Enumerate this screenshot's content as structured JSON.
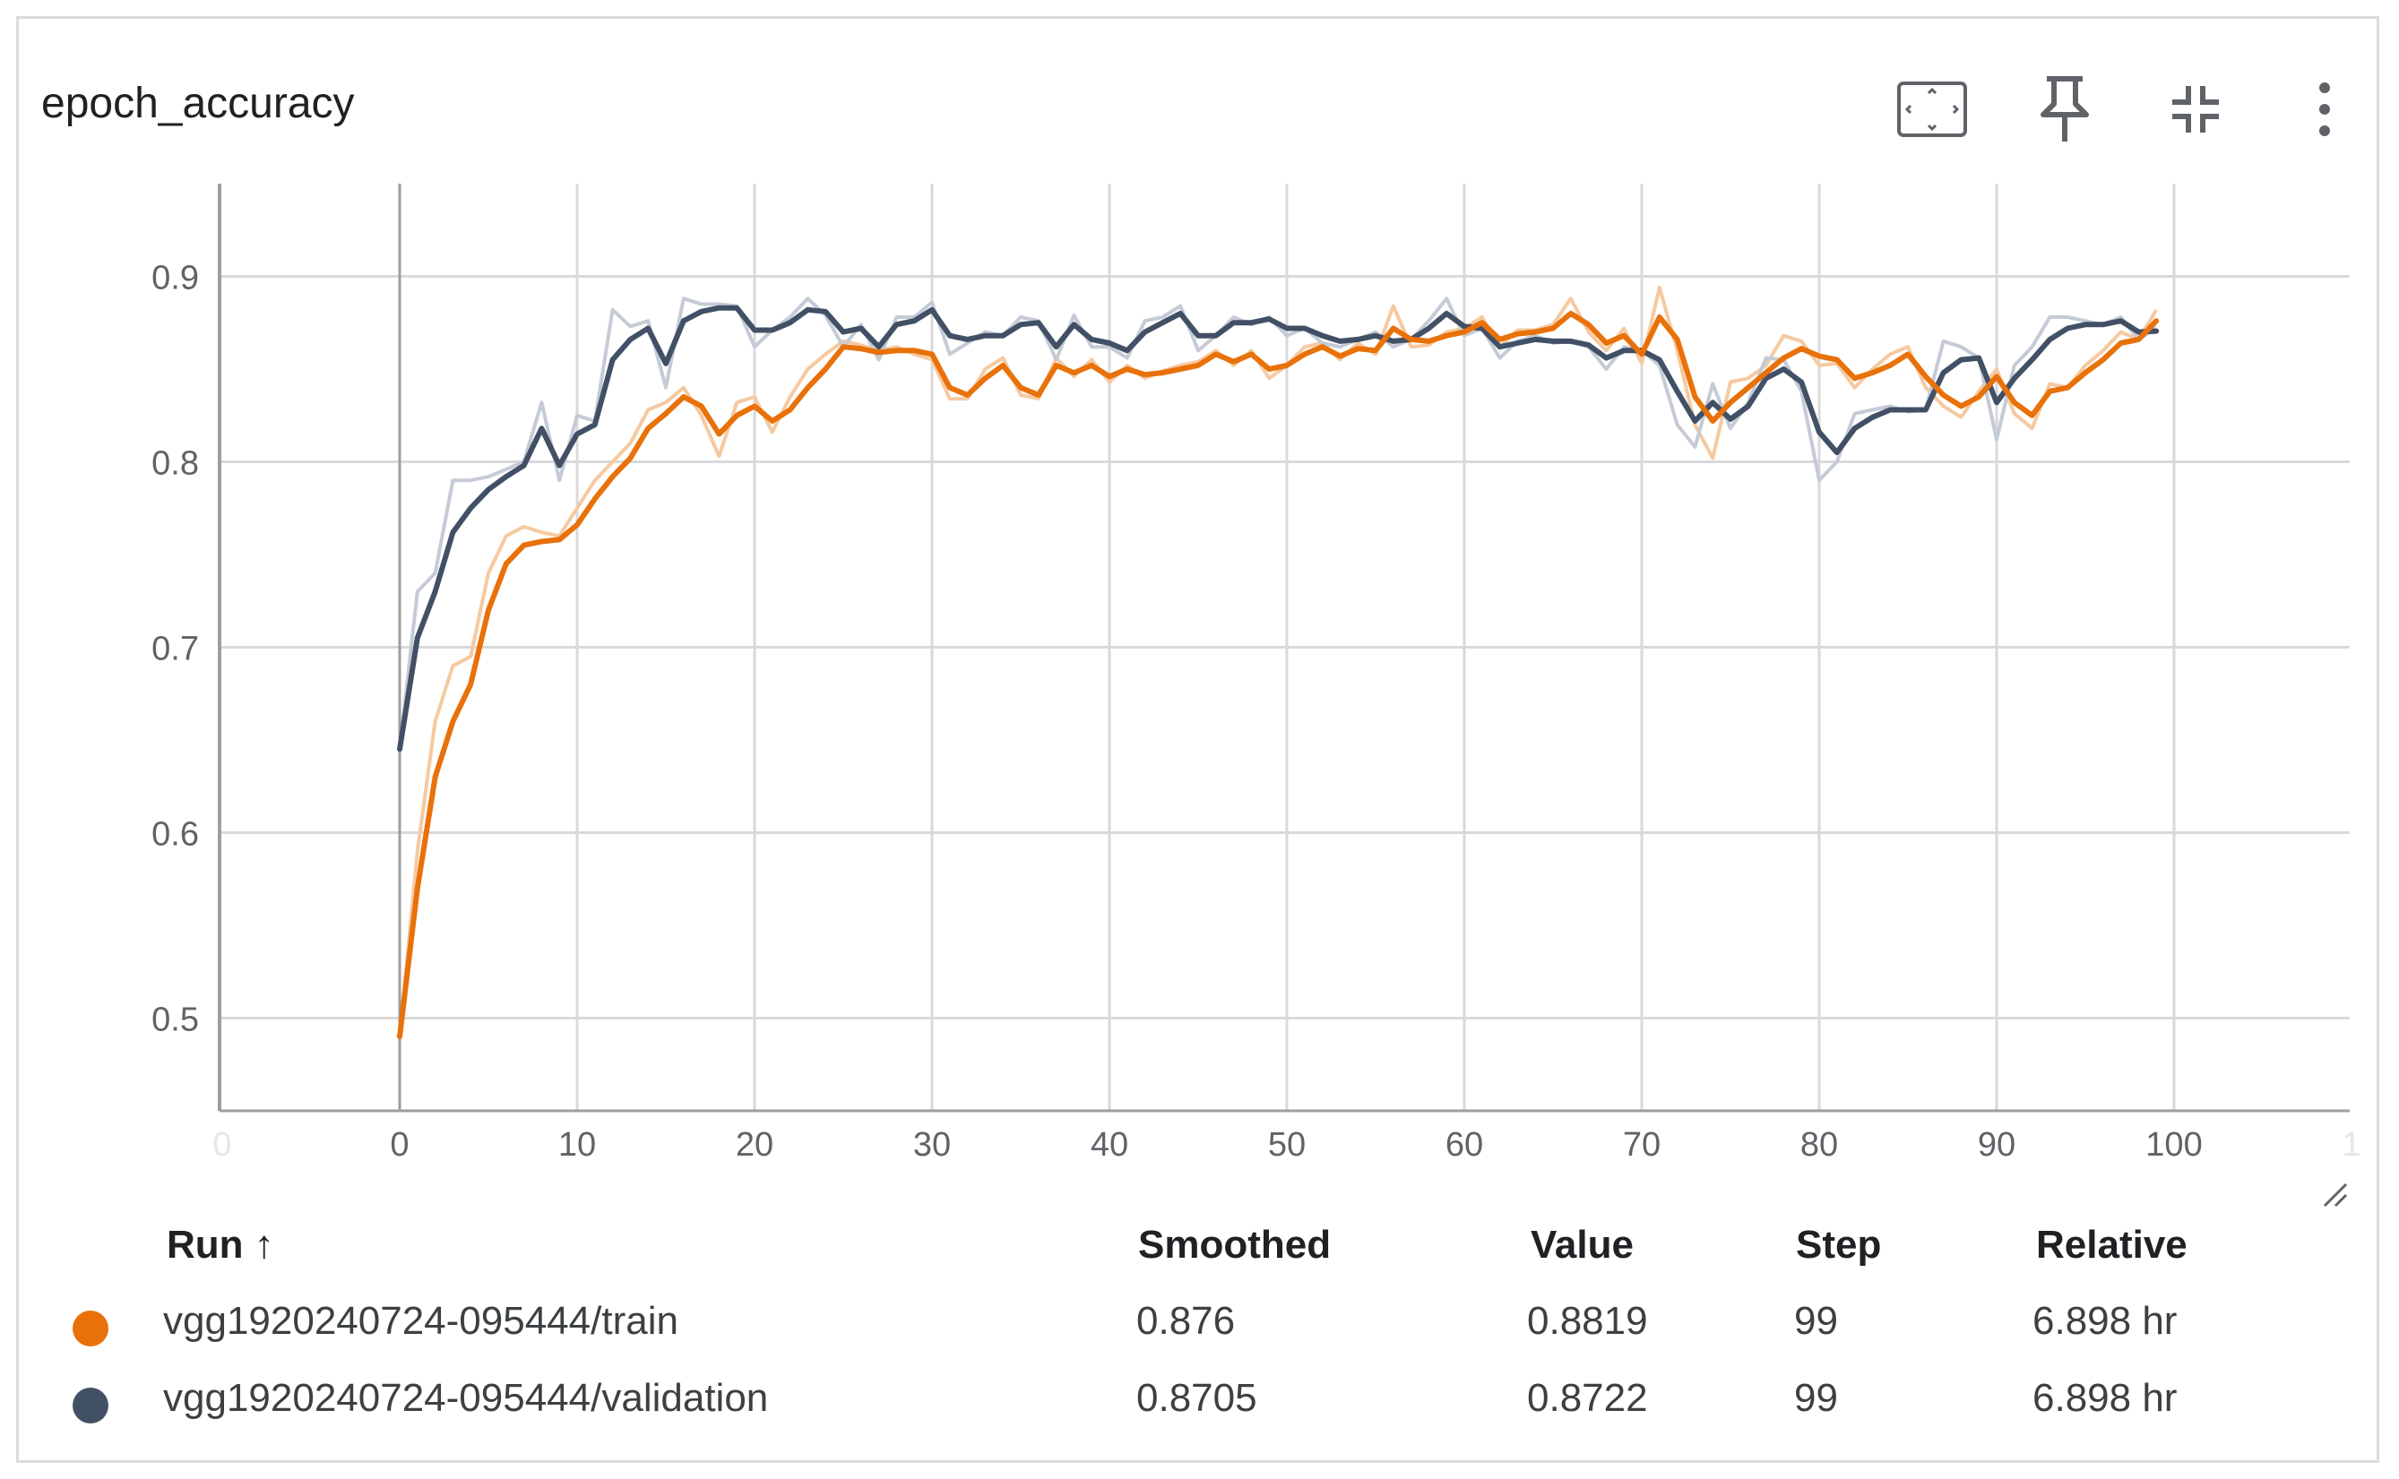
{
  "card": {
    "title": "epoch_accuracy",
    "icons": [
      "fit-domain-icon",
      "pin-icon",
      "collapse-icon",
      "more-vert-icon"
    ]
  },
  "table": {
    "headers": {
      "run": "Run ↑",
      "smoothed": "Smoothed",
      "value": "Value",
      "step": "Step",
      "relative": "Relative"
    },
    "rows": [
      {
        "run": "vgg1920240724-095444/train",
        "smoothed": "0.876",
        "value": "0.8819",
        "step": "99",
        "relative": "6.898 hr",
        "color": "#e8710a"
      },
      {
        "run": "vgg1920240724-095444/validation",
        "smoothed": "0.8705",
        "value": "0.8722",
        "step": "99",
        "relative": "6.898 hr",
        "color": "#425066"
      }
    ]
  },
  "chart_data": {
    "type": "line",
    "title": "epoch_accuracy",
    "xlabel": "",
    "ylabel": "",
    "xlim": [
      -10,
      110
    ],
    "ylim": [
      0.45,
      0.95
    ],
    "xticks": [
      "0",
      "0",
      "10",
      "20",
      "30",
      "40",
      "50",
      "60",
      "70",
      "80",
      "90",
      "100",
      "1"
    ],
    "yticks": [
      "0.5",
      "0.6",
      "0.7",
      "0.8",
      "0.9"
    ],
    "grid": true,
    "series": [
      {
        "name": "vgg1920240724-095444/train",
        "color": "#e8710a",
        "raw_color": "#f6c9a0",
        "x": [
          0,
          1,
          2,
          3,
          4,
          5,
          6,
          7,
          8,
          9,
          10,
          11,
          12,
          13,
          14,
          15,
          16,
          17,
          18,
          19,
          20,
          21,
          22,
          23,
          24,
          25,
          26,
          27,
          28,
          29,
          30,
          31,
          32,
          33,
          34,
          35,
          36,
          37,
          38,
          39,
          40,
          41,
          42,
          43,
          44,
          45,
          46,
          47,
          48,
          49,
          50,
          51,
          52,
          53,
          54,
          55,
          56,
          57,
          58,
          59,
          60,
          61,
          62,
          63,
          64,
          65,
          66,
          67,
          68,
          69,
          70,
          71,
          72,
          73,
          74,
          75,
          76,
          77,
          78,
          79,
          80,
          81,
          82,
          83,
          84,
          85,
          86,
          87,
          88,
          89,
          90,
          91,
          92,
          93,
          94,
          95,
          96,
          97,
          98,
          99
        ],
        "smoothed": [
          0.49,
          0.57,
          0.63,
          0.66,
          0.68,
          0.72,
          0.745,
          0.755,
          0.757,
          0.758,
          0.766,
          0.78,
          0.792,
          0.802,
          0.818,
          0.826,
          0.835,
          0.83,
          0.815,
          0.825,
          0.83,
          0.822,
          0.828,
          0.84,
          0.85,
          0.862,
          0.861,
          0.859,
          0.86,
          0.86,
          0.858,
          0.84,
          0.836,
          0.845,
          0.852,
          0.84,
          0.836,
          0.852,
          0.848,
          0.852,
          0.846,
          0.85,
          0.847,
          0.848,
          0.85,
          0.852,
          0.858,
          0.854,
          0.858,
          0.85,
          0.852,
          0.858,
          0.862,
          0.857,
          0.861,
          0.86,
          0.872,
          0.866,
          0.865,
          0.868,
          0.87,
          0.875,
          0.866,
          0.869,
          0.87,
          0.872,
          0.88,
          0.874,
          0.864,
          0.868,
          0.858,
          0.878,
          0.866,
          0.835,
          0.822,
          0.832,
          0.84,
          0.848,
          0.856,
          0.861,
          0.857,
          0.855,
          0.845,
          0.848,
          0.852,
          0.858,
          0.846,
          0.836,
          0.83,
          0.835,
          0.846,
          0.832,
          0.825,
          0.838,
          0.84,
          0.848,
          0.855,
          0.864,
          0.866,
          0.876
        ],
        "raw": [
          0.49,
          0.59,
          0.66,
          0.69,
          0.695,
          0.74,
          0.76,
          0.765,
          0.762,
          0.76,
          0.775,
          0.79,
          0.8,
          0.81,
          0.828,
          0.832,
          0.84,
          0.825,
          0.803,
          0.832,
          0.835,
          0.816,
          0.835,
          0.85,
          0.858,
          0.865,
          0.863,
          0.86,
          0.862,
          0.858,
          0.855,
          0.834,
          0.834,
          0.85,
          0.856,
          0.836,
          0.834,
          0.856,
          0.846,
          0.855,
          0.843,
          0.852,
          0.845,
          0.849,
          0.852,
          0.854,
          0.86,
          0.852,
          0.86,
          0.845,
          0.852,
          0.862,
          0.864,
          0.855,
          0.864,
          0.858,
          0.884,
          0.862,
          0.863,
          0.87,
          0.872,
          0.878,
          0.862,
          0.871,
          0.871,
          0.874,
          0.888,
          0.87,
          0.86,
          0.872,
          0.853,
          0.894,
          0.86,
          0.82,
          0.802,
          0.843,
          0.845,
          0.852,
          0.868,
          0.865,
          0.852,
          0.853,
          0.84,
          0.85,
          0.858,
          0.862,
          0.84,
          0.83,
          0.824,
          0.838,
          0.85,
          0.826,
          0.818,
          0.842,
          0.84,
          0.852,
          0.86,
          0.87,
          0.866,
          0.8819
        ]
      },
      {
        "name": "vgg1920240724-095444/validation",
        "color": "#425066",
        "raw_color": "#c5cbd6",
        "x": [
          0,
          1,
          2,
          3,
          4,
          5,
          6,
          7,
          8,
          9,
          10,
          11,
          12,
          13,
          14,
          15,
          16,
          17,
          18,
          19,
          20,
          21,
          22,
          23,
          24,
          25,
          26,
          27,
          28,
          29,
          30,
          31,
          32,
          33,
          34,
          35,
          36,
          37,
          38,
          39,
          40,
          41,
          42,
          43,
          44,
          45,
          46,
          47,
          48,
          49,
          50,
          51,
          52,
          53,
          54,
          55,
          56,
          57,
          58,
          59,
          60,
          61,
          62,
          63,
          64,
          65,
          66,
          67,
          68,
          69,
          70,
          71,
          72,
          73,
          74,
          75,
          76,
          77,
          78,
          79,
          80,
          81,
          82,
          83,
          84,
          85,
          86,
          87,
          88,
          89,
          90,
          91,
          92,
          93,
          94,
          95,
          96,
          97,
          98,
          99
        ],
        "smoothed": [
          0.645,
          0.705,
          0.73,
          0.762,
          0.775,
          0.785,
          0.792,
          0.798,
          0.818,
          0.798,
          0.815,
          0.82,
          0.855,
          0.866,
          0.872,
          0.853,
          0.876,
          0.881,
          0.883,
          0.883,
          0.871,
          0.871,
          0.875,
          0.882,
          0.881,
          0.87,
          0.872,
          0.862,
          0.874,
          0.876,
          0.882,
          0.868,
          0.866,
          0.868,
          0.868,
          0.874,
          0.875,
          0.862,
          0.874,
          0.866,
          0.864,
          0.86,
          0.87,
          0.875,
          0.88,
          0.868,
          0.868,
          0.875,
          0.875,
          0.877,
          0.872,
          0.872,
          0.868,
          0.865,
          0.866,
          0.868,
          0.865,
          0.866,
          0.872,
          0.88,
          0.873,
          0.872,
          0.862,
          0.864,
          0.866,
          0.865,
          0.865,
          0.863,
          0.856,
          0.86,
          0.86,
          0.855,
          0.838,
          0.822,
          0.832,
          0.823,
          0.83,
          0.845,
          0.85,
          0.843,
          0.816,
          0.805,
          0.818,
          0.824,
          0.828,
          0.828,
          0.828,
          0.848,
          0.855,
          0.856,
          0.832,
          0.845,
          0.855,
          0.866,
          0.872,
          0.874,
          0.874,
          0.876,
          0.87,
          0.8705
        ],
        "raw": [
          0.645,
          0.73,
          0.74,
          0.79,
          0.79,
          0.792,
          0.796,
          0.8,
          0.832,
          0.79,
          0.825,
          0.822,
          0.882,
          0.873,
          0.876,
          0.84,
          0.888,
          0.885,
          0.885,
          0.884,
          0.862,
          0.871,
          0.878,
          0.888,
          0.879,
          0.862,
          0.874,
          0.855,
          0.878,
          0.878,
          0.886,
          0.858,
          0.864,
          0.87,
          0.868,
          0.878,
          0.876,
          0.855,
          0.879,
          0.862,
          0.862,
          0.856,
          0.876,
          0.878,
          0.884,
          0.86,
          0.868,
          0.878,
          0.874,
          0.878,
          0.868,
          0.872,
          0.864,
          0.862,
          0.866,
          0.87,
          0.862,
          0.866,
          0.876,
          0.888,
          0.868,
          0.872,
          0.856,
          0.865,
          0.868,
          0.864,
          0.865,
          0.862,
          0.85,
          0.862,
          0.86,
          0.852,
          0.82,
          0.808,
          0.842,
          0.818,
          0.832,
          0.856,
          0.855,
          0.838,
          0.79,
          0.8,
          0.826,
          0.828,
          0.83,
          0.827,
          0.828,
          0.865,
          0.862,
          0.856,
          0.812,
          0.852,
          0.862,
          0.878,
          0.878,
          0.876,
          0.874,
          0.878,
          0.866,
          0.8722
        ]
      }
    ]
  }
}
